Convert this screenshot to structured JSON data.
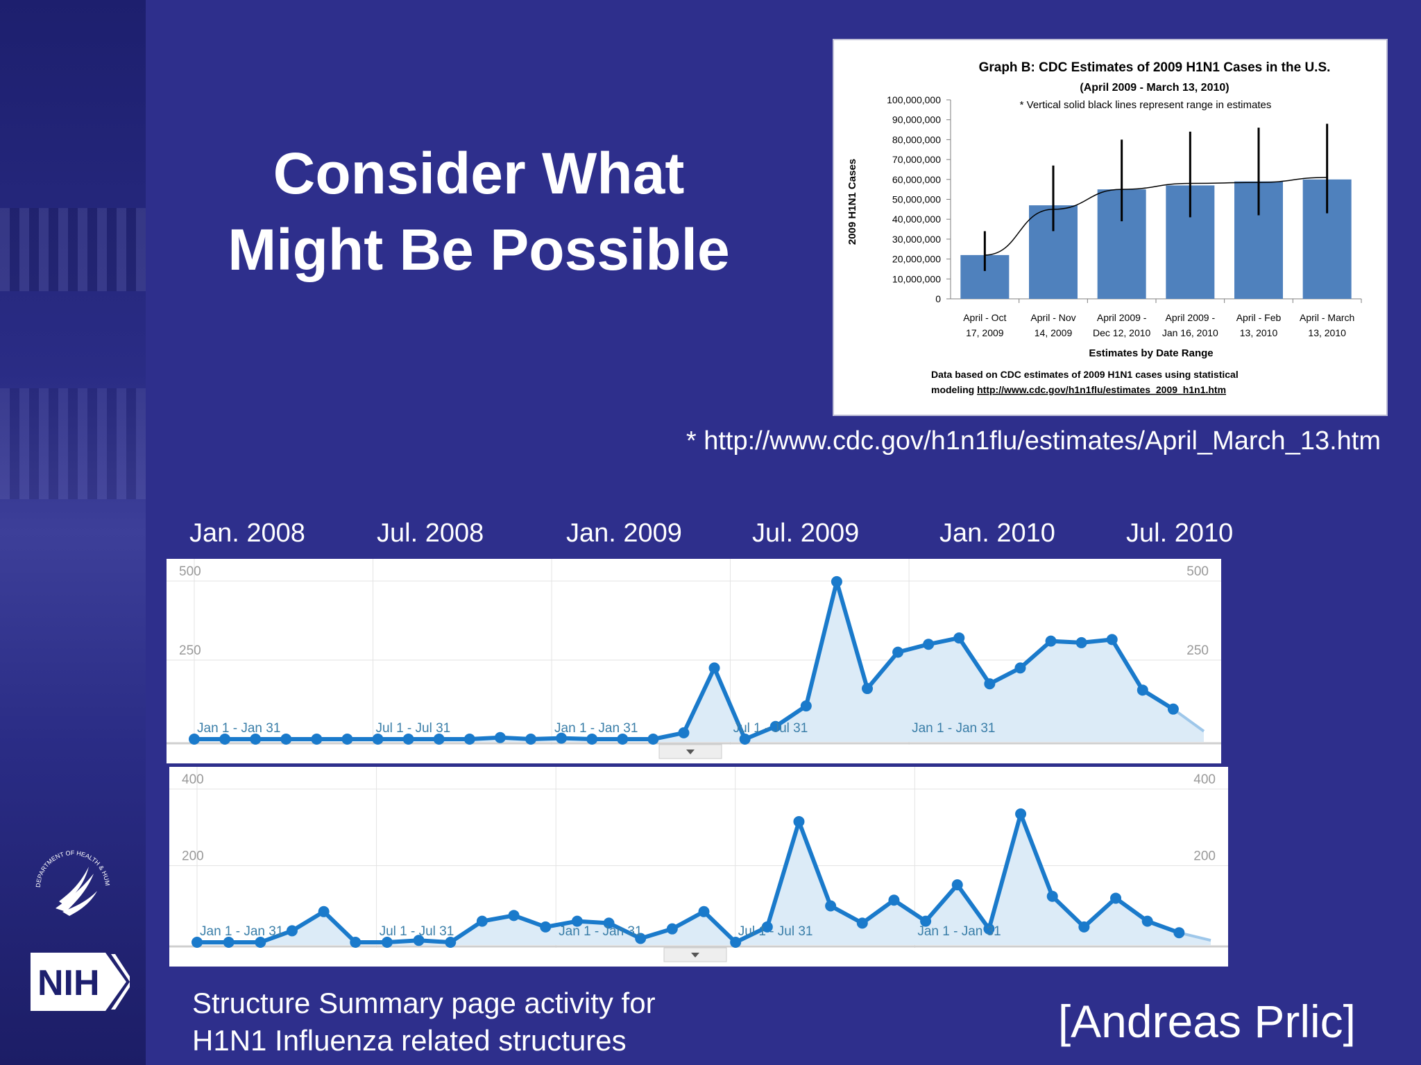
{
  "slide": {
    "title_line1": "Consider What",
    "title_line2": "Might Be Possible",
    "source_url": "* http://www.cdc.gov/h1n1flu/estimates/April_March_13.htm",
    "caption_line1": "Structure Summary page activity for",
    "caption_line2": "H1N1 Influenza related structures",
    "credit": "[Andreas Prlic]",
    "timeline_labels": [
      "Jan. 2008",
      "Jul. 2008",
      "Jan. 2009",
      "Jul. 2009",
      "Jan. 2010",
      "Jul. 2010"
    ],
    "logo_text": "NIH",
    "seal_text": "DEPARTMENT OF HEALTH & HUMAN SERVICES · USA",
    "colors": {
      "background": "#2e2f8c",
      "bar": "#4f81bd",
      "line": "#1a7acb",
      "area": "#dcebf7"
    }
  },
  "chart_data": [
    {
      "type": "bar",
      "title": "Graph B: CDC Estimates of 2009 H1N1 Cases in the U.S.",
      "subtitle": "(April 2009 - March 13, 2010)",
      "annotation": "* Vertical solid black lines represent range in estimates",
      "ylabel": "2009 H1N1 Cases",
      "xlabel": "Estimates by Date Range",
      "footnote_line1": "Data based on CDC estimates of 2009 H1N1 cases using statistical",
      "footnote_line2_prefix": "modeling ",
      "footnote_link": "http://www.cdc.gov/h1n1flu/estimates_2009_h1n1.htm",
      "ylim": [
        0,
        100000000
      ],
      "yticks": [
        "0",
        "10,000,000",
        "20,000,000",
        "30,000,000",
        "40,000,000",
        "50,000,000",
        "60,000,000",
        "70,000,000",
        "80,000,000",
        "90,000,000",
        "100,000,000"
      ],
      "categories": [
        [
          "April - Oct",
          "17, 2009"
        ],
        [
          "April - Nov",
          "14, 2009"
        ],
        [
          "April 2009 -",
          "Dec 12, 2010"
        ],
        [
          "April 2009 -",
          "Jan 16, 2010"
        ],
        [
          "April - Feb",
          "13, 2010"
        ],
        [
          "April - March",
          "13, 2010"
        ]
      ],
      "values": [
        22000000,
        47000000,
        55000000,
        57000000,
        59000000,
        60000000
      ],
      "range_low": [
        14000000,
        34000000,
        39000000,
        41000000,
        42000000,
        43000000
      ],
      "range_high": [
        34000000,
        67000000,
        80000000,
        84000000,
        86000000,
        88000000
      ],
      "trend": [
        22000000,
        45000000,
        55000000,
        58000000,
        58500000,
        61000000
      ]
    },
    {
      "type": "area",
      "ylim": [
        0,
        500
      ],
      "yticks": [
        "250",
        "500"
      ],
      "period_labels": [
        "Jan 1 - Jan 31",
        "Jul 1 - Jul 31",
        "Jan 1 - Jan 31",
        "Jul 1 - Jul 31",
        "Jan 1 - Jan 31"
      ],
      "values": [
        0,
        0,
        0,
        0,
        0,
        0,
        0,
        0,
        0,
        0,
        5,
        0,
        3,
        0,
        0,
        0,
        20,
        225,
        0,
        40,
        105,
        498,
        160,
        275,
        300,
        320,
        175,
        225,
        310,
        305,
        315,
        155,
        95,
        25
      ],
      "marker_count": 33
    },
    {
      "type": "area",
      "ylim": [
        0,
        400
      ],
      "yticks": [
        "200",
        "400"
      ],
      "period_labels": [
        "Jan 1 - Jan 31",
        "Jul 1 - Jul 31",
        "Jan 1 - Jan 31",
        "Jul 1 - Jul 31",
        "Jan 1 - Jan 31"
      ],
      "values": [
        0,
        0,
        0,
        30,
        80,
        0,
        0,
        5,
        0,
        55,
        70,
        40,
        55,
        50,
        10,
        35,
        80,
        0,
        40,
        315,
        95,
        50,
        110,
        55,
        150,
        35,
        335,
        120,
        40,
        115,
        55,
        25,
        5
      ],
      "marker_count": 32
    }
  ]
}
